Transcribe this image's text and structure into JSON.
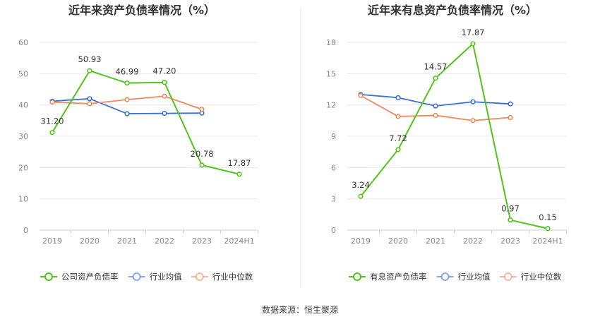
{
  "source_text": "数据来源：恒生聚源",
  "chart_data": [
    {
      "type": "line",
      "title": "近年来资产负债率情况（%）",
      "categories": [
        "2019",
        "2020",
        "2021",
        "2022",
        "2023",
        "2024H1"
      ],
      "y_ticks": [
        "0",
        "10",
        "20",
        "30",
        "40",
        "50",
        "60"
      ],
      "ylim": [
        0,
        60
      ],
      "grid": true,
      "legend_position": "bottom",
      "series": [
        {
          "name": "公司资产负债率",
          "color": "#52c41a",
          "values": [
            31.2,
            50.93,
            46.99,
            47.2,
            20.78,
            17.87
          ],
          "labels": [
            "31.20",
            "50.93",
            "46.99",
            "47.20",
            "20.78",
            "17.87"
          ]
        },
        {
          "name": "行业均值",
          "color": "#3a6fd8",
          "values": [
            41.2,
            42.0,
            37.2,
            37.3,
            37.4,
            null
          ]
        },
        {
          "name": "行业中位数",
          "color": "#f08a5d",
          "values": [
            40.9,
            40.4,
            41.7,
            42.8,
            38.6,
            null
          ]
        }
      ]
    },
    {
      "type": "line",
      "title": "近年来有息资产负债率情况（%）",
      "categories": [
        "2019",
        "2020",
        "2021",
        "2022",
        "2023",
        "2024H1"
      ],
      "y_ticks": [
        "0",
        "3",
        "6",
        "9",
        "12",
        "15",
        "18"
      ],
      "ylim": [
        0,
        18
      ],
      "grid": true,
      "legend_position": "bottom",
      "series": [
        {
          "name": "有息资产负债率",
          "color": "#52c41a",
          "values": [
            3.24,
            7.72,
            14.57,
            17.87,
            0.97,
            0.15
          ],
          "labels": [
            "3.24",
            "7.72",
            "14.57",
            "17.87",
            "0.97",
            "0.15"
          ]
        },
        {
          "name": "行业均值",
          "color": "#3a6fd8",
          "values": [
            13.0,
            12.7,
            11.9,
            12.3,
            12.1,
            null
          ]
        },
        {
          "name": "行业中位数",
          "color": "#f08a5d",
          "values": [
            12.9,
            10.9,
            11.0,
            10.5,
            10.8,
            null
          ]
        }
      ]
    }
  ]
}
